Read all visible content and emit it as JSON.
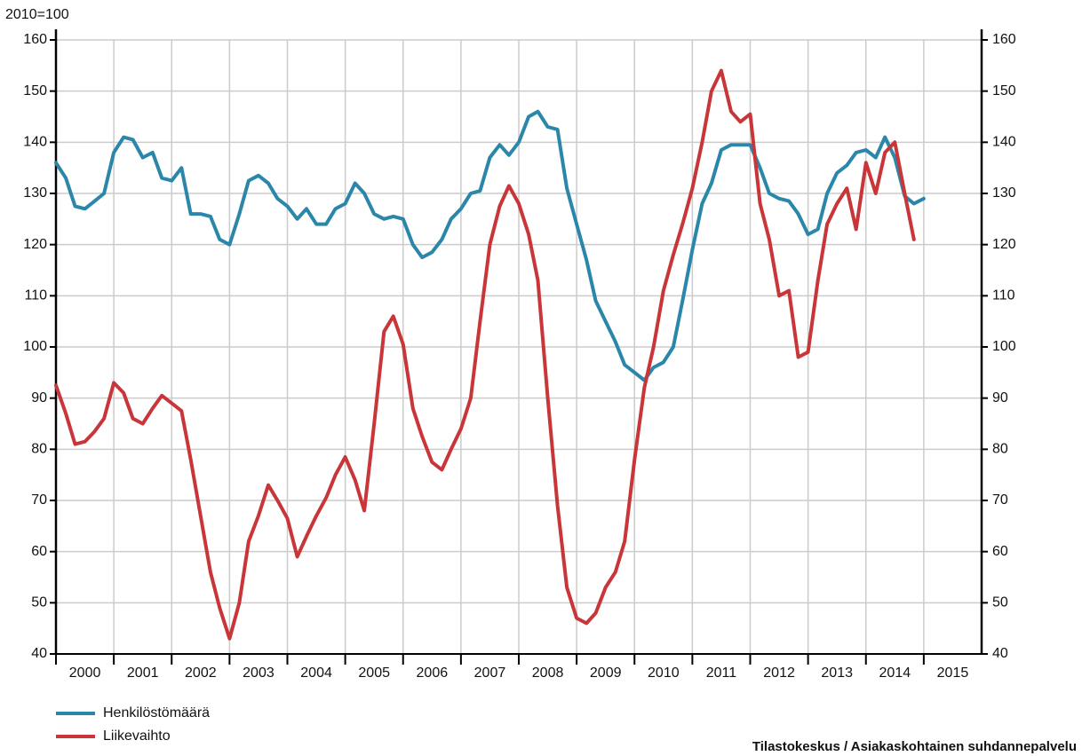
{
  "chart_data": {
    "type": "line",
    "ylabel": "2010=100",
    "source": "Tilastokeskus / Asiakaskohtainen suhdannepalvelu",
    "xlim": [
      2000,
      2016
    ],
    "xticks": [
      2000,
      2001,
      2002,
      2003,
      2004,
      2005,
      2006,
      2007,
      2008,
      2009,
      2010,
      2011,
      2012,
      2013,
      2014,
      2015
    ],
    "ylim": [
      40,
      160
    ],
    "yticks": [
      40,
      50,
      60,
      70,
      80,
      90,
      100,
      110,
      120,
      130,
      140,
      150,
      160
    ],
    "grid": true,
    "legend": "bottom-left",
    "x": [
      2000,
      2000.17,
      2000.33,
      2000.5,
      2000.67,
      2000.83,
      2001,
      2001.17,
      2001.33,
      2001.5,
      2001.67,
      2001.83,
      2002,
      2002.17,
      2002.33,
      2002.5,
      2002.67,
      2002.83,
      2003,
      2003.17,
      2003.33,
      2003.5,
      2003.67,
      2003.83,
      2004,
      2004.17,
      2004.33,
      2004.5,
      2004.67,
      2004.83,
      2005,
      2005.17,
      2005.33,
      2005.5,
      2005.67,
      2005.83,
      2006,
      2006.17,
      2006.33,
      2006.5,
      2006.67,
      2006.83,
      2007,
      2007.17,
      2007.33,
      2007.5,
      2007.67,
      2007.83,
      2008,
      2008.17,
      2008.33,
      2008.5,
      2008.67,
      2008.83,
      2009,
      2009.17,
      2009.33,
      2009.5,
      2009.67,
      2009.83,
      2010,
      2010.17,
      2010.33,
      2010.5,
      2010.67,
      2010.83,
      2011,
      2011.17,
      2011.33,
      2011.5,
      2011.67,
      2011.83,
      2012,
      2012.17,
      2012.33,
      2012.5,
      2012.67,
      2012.83,
      2013,
      2013.17,
      2013.33,
      2013.5,
      2013.67,
      2013.83,
      2014,
      2014.17,
      2014.33,
      2014.5,
      2014.67,
      2014.83,
      2015
    ],
    "series": [
      {
        "name": "Henkilöstömäärä",
        "color": "#2b87a9",
        "values": [
          136,
          133,
          127.5,
          127,
          128.5,
          130,
          138,
          141,
          140.5,
          137,
          138,
          133,
          132.5,
          135,
          126,
          126,
          125.5,
          121,
          120,
          126,
          132.5,
          133.5,
          132,
          129,
          127.5,
          125,
          127,
          124,
          124,
          127,
          128,
          132,
          130,
          126,
          125,
          125.5,
          125,
          120,
          117.5,
          118.5,
          121,
          125,
          127,
          130,
          130.5,
          137,
          139.5,
          137.5,
          140,
          145,
          146,
          143,
          142.5,
          131,
          124,
          117,
          109,
          105,
          101,
          96.5,
          95,
          93.5,
          96,
          97,
          100,
          109,
          119,
          128,
          132,
          138.5,
          139.5,
          139.5,
          139.5,
          135,
          130,
          129,
          128.5,
          126,
          122,
          123,
          130,
          134,
          135.5,
          138,
          138.5,
          137,
          141,
          137,
          129.5,
          128,
          129
        ]
      },
      {
        "name": "Liikevaihto",
        "color": "#c8363a",
        "values": [
          92.5,
          87,
          81,
          81.5,
          83.5,
          86,
          93,
          91,
          86,
          85,
          88,
          90.5,
          89,
          87.5,
          78,
          67,
          56,
          49,
          43,
          50,
          62,
          67,
          73,
          70,
          66.5,
          59,
          63,
          67,
          70.5,
          75,
          78.5,
          74,
          68,
          85,
          103,
          106,
          100.5,
          88,
          82.5,
          77.5,
          76,
          80,
          84,
          90,
          105,
          120,
          127.5,
          131.5,
          128,
          122,
          113,
          90,
          69,
          53,
          47,
          46,
          48,
          53,
          56,
          62,
          78,
          92,
          100,
          111,
          118,
          124,
          131,
          140,
          150,
          154,
          146,
          144,
          145.5,
          128,
          121,
          110,
          111,
          98,
          99,
          113,
          124,
          128,
          131,
          123,
          136,
          130,
          138,
          140,
          130,
          121,
          null
        ]
      }
    ]
  }
}
